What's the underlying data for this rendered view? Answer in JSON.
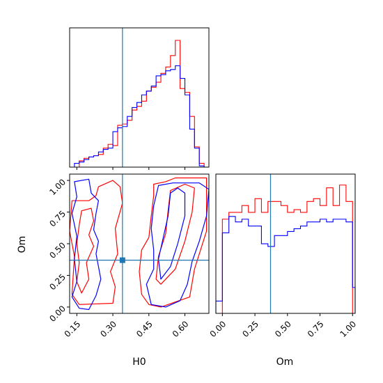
{
  "chart_data": {
    "type": "corner",
    "parameters": [
      "H0",
      "Om"
    ],
    "truths": {
      "H0": 0.34,
      "Om": 0.37
    },
    "series_colors": [
      "#ff0000",
      "#0000ff"
    ],
    "truth_color": "#1f77b4",
    "panels": {
      "hist_H0": {
        "type": "histogram",
        "xlim": [
          0.12,
          0.7
        ],
        "bin_edges": [
          0.12,
          0.14,
          0.16,
          0.18,
          0.2,
          0.22,
          0.24,
          0.26,
          0.28,
          0.3,
          0.32,
          0.34,
          0.36,
          0.38,
          0.4,
          0.42,
          0.44,
          0.46,
          0.48,
          0.5,
          0.52,
          0.54,
          0.56,
          0.58,
          0.6,
          0.62,
          0.64,
          0.66,
          0.68,
          0.7
        ],
        "series": [
          {
            "values": [
              0.0,
              0.0,
              0.05,
              0.07,
              0.08,
              0.09,
              0.1,
              0.15,
              0.18,
              0.17,
              0.33,
              0.34,
              0.37,
              0.45,
              0.48,
              0.52,
              0.6,
              0.63,
              0.67,
              0.74,
              0.79,
              0.88,
              1.0,
              0.62,
              0.59,
              0.4,
              0.16,
              0.03,
              0.0
            ]
          },
          {
            "values": [
              0.0,
              0.03,
              0.04,
              0.06,
              0.08,
              0.09,
              0.12,
              0.14,
              0.15,
              0.28,
              0.31,
              0.32,
              0.4,
              0.47,
              0.51,
              0.57,
              0.6,
              0.64,
              0.72,
              0.73,
              0.76,
              0.77,
              0.8,
              0.7,
              0.57,
              0.3,
              0.15,
              0.01,
              0.0
            ]
          }
        ]
      },
      "hist_Om": {
        "type": "histogram",
        "xlim": [
          -0.05,
          1.02
        ],
        "xticks": [
          "0.00",
          "0.25",
          "0.50",
          "0.75",
          "1.00"
        ],
        "bin_edges": [
          -0.05,
          0.0,
          0.05,
          0.1,
          0.15,
          0.2,
          0.25,
          0.3,
          0.35,
          0.4,
          0.45,
          0.5,
          0.55,
          0.6,
          0.65,
          0.7,
          0.75,
          0.8,
          0.85,
          0.9,
          0.95,
          1.0,
          1.02
        ],
        "series": [
          {
            "values": [
              0.0,
              0.69,
              0.74,
              0.74,
              0.79,
              0.74,
              0.84,
              0.74,
              0.82,
              0.82,
              0.79,
              0.74,
              0.76,
              0.74,
              0.82,
              0.84,
              0.79,
              0.92,
              0.79,
              0.94,
              0.82,
              0.0
            ]
          },
          {
            "values": [
              0.09,
              0.59,
              0.71,
              0.67,
              0.69,
              0.64,
              0.64,
              0.51,
              0.49,
              0.57,
              0.57,
              0.6,
              0.62,
              0.64,
              0.67,
              0.67,
              0.69,
              0.67,
              0.69,
              0.69,
              0.67,
              0.19
            ]
          }
        ]
      },
      "contour_H0_Om": {
        "type": "contour",
        "xlim": [
          0.12,
          0.7
        ],
        "ylim": [
          -0.05,
          1.05
        ],
        "xticks": [
          "0.15",
          "0.30",
          "0.45",
          "0.60"
        ],
        "yticks": [
          "0.00",
          "0.25",
          "0.50",
          "0.75",
          "1.00"
        ],
        "xlabel": "H0",
        "ylabel": "Om",
        "truth_point": {
          "x": 0.34,
          "y": 0.37
        },
        "series": [
          {
            "contours": [
              [
                [
                  0.13,
                  0.84
                ],
                [
                  0.2,
                  0.84
                ],
                [
                  0.23,
                  0.88
                ],
                [
                  0.24,
                  0.95
                ],
                [
                  0.3,
                  1.0
                ],
                [
                  0.33,
                  0.95
                ],
                [
                  0.34,
                  0.82
                ],
                [
                  0.31,
                  0.62
                ],
                [
                  0.32,
                  0.42
                ],
                [
                  0.29,
                  0.28
                ],
                [
                  0.31,
                  0.16
                ],
                [
                  0.3,
                  0.03
                ],
                [
                  0.16,
                  0.02
                ],
                [
                  0.13,
                  0.1
                ],
                [
                  0.14,
                  0.4
                ],
                [
                  0.12,
                  0.6
                ]
              ],
              [
                [
                  0.47,
                  0.97
                ],
                [
                  0.52,
                  0.99
                ],
                [
                  0.56,
                  1.02
                ],
                [
                  0.62,
                  1.02
                ],
                [
                  0.69,
                  1.02
                ],
                [
                  0.69,
                  0.6
                ],
                [
                  0.64,
                  0.3
                ],
                [
                  0.62,
                  0.08
                ],
                [
                  0.5,
                  0.0
                ],
                [
                  0.45,
                  0.02
                ],
                [
                  0.42,
                  0.1
                ],
                [
                  0.41,
                  0.28
                ],
                [
                  0.42,
                  0.45
                ],
                [
                  0.45,
                  0.55
                ],
                [
                  0.46,
                  0.72
                ],
                [
                  0.47,
                  0.88
                ]
              ],
              [
                [
                  0.17,
                  0.76
                ],
                [
                  0.21,
                  0.78
                ],
                [
                  0.22,
                  0.68
                ],
                [
                  0.2,
                  0.57
                ],
                [
                  0.22,
                  0.48
                ],
                [
                  0.19,
                  0.35
                ],
                [
                  0.2,
                  0.22
                ],
                [
                  0.17,
                  0.11
                ],
                [
                  0.15,
                  0.2
                ],
                [
                  0.16,
                  0.35
                ],
                [
                  0.15,
                  0.5
                ],
                [
                  0.16,
                  0.65
                ]
              ],
              [
                [
                  0.54,
                  0.92
                ],
                [
                  0.6,
                  0.97
                ],
                [
                  0.64,
                  0.94
                ],
                [
                  0.63,
                  0.75
                ],
                [
                  0.6,
                  0.52
                ],
                [
                  0.56,
                  0.3
                ],
                [
                  0.5,
                  0.18
                ],
                [
                  0.48,
                  0.22
                ],
                [
                  0.49,
                  0.4
                ],
                [
                  0.52,
                  0.58
                ],
                [
                  0.53,
                  0.76
                ]
              ]
            ]
          },
          {
            "contours": [
              [
                [
                  0.14,
                  0.99
                ],
                [
                  0.2,
                  1.01
                ],
                [
                  0.21,
                  0.9
                ],
                [
                  0.24,
                  0.84
                ],
                [
                  0.23,
                  0.74
                ],
                [
                  0.22,
                  0.61
                ],
                [
                  0.24,
                  0.52
                ],
                [
                  0.23,
                  0.42
                ],
                [
                  0.24,
                  0.32
                ],
                [
                  0.25,
                  0.22
                ],
                [
                  0.23,
                  0.09
                ],
                [
                  0.2,
                  -0.02
                ],
                [
                  0.16,
                  -0.01
                ],
                [
                  0.13,
                  0.08
                ],
                [
                  0.15,
                  0.2
                ],
                [
                  0.14,
                  0.38
                ],
                [
                  0.15,
                  0.56
                ],
                [
                  0.13,
                  0.74
                ],
                [
                  0.15,
                  0.87
                ]
              ],
              [
                [
                  0.49,
                  0.96
                ],
                [
                  0.55,
                  0.98
                ],
                [
                  0.6,
                  0.98
                ],
                [
                  0.66,
                  0.98
                ],
                [
                  0.7,
                  0.93
                ],
                [
                  0.69,
                  0.72
                ],
                [
                  0.66,
                  0.52
                ],
                [
                  0.63,
                  0.36
                ],
                [
                  0.61,
                  0.18
                ],
                [
                  0.58,
                  0.05
                ],
                [
                  0.52,
                  0.0
                ],
                [
                  0.46,
                  0.02
                ],
                [
                  0.44,
                  0.18
                ],
                [
                  0.47,
                  0.3
                ],
                [
                  0.47,
                  0.45
                ],
                [
                  0.46,
                  0.62
                ],
                [
                  0.47,
                  0.8
                ]
              ],
              [
                [
                  0.54,
                  0.9
                ],
                [
                  0.57,
                  0.94
                ],
                [
                  0.6,
                  0.9
                ],
                [
                  0.6,
                  0.72
                ],
                [
                  0.57,
                  0.5
                ],
                [
                  0.54,
                  0.32
                ],
                [
                  0.5,
                  0.22
                ],
                [
                  0.49,
                  0.38
                ],
                [
                  0.51,
                  0.55
                ],
                [
                  0.53,
                  0.72
                ]
              ]
            ]
          }
        ]
      },
      "hist_Om_axis_label": "Om"
    }
  }
}
